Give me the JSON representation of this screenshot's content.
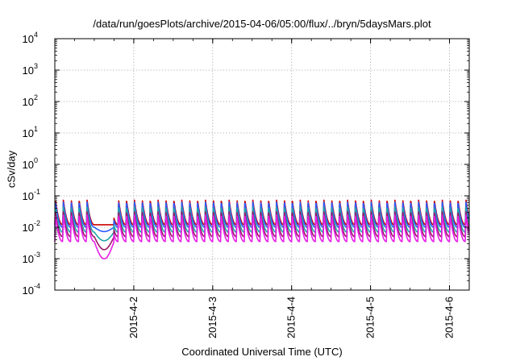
{
  "chart_data": {
    "type": "line",
    "title": "/data/run/goesPlots/archive/2015-04-06/05:00/flux/../bryn/5daysMars.plot",
    "xlabel": "Coordinated Universal Time (UTC)",
    "ylabel": "cSv/day",
    "yscale": "log",
    "ylim": [
      0.0001,
      10000
    ],
    "xlim": [
      "2015-04-01 00:00",
      "2015-04-06 06:00"
    ],
    "x_ticks": [
      "2015-4-2",
      "2015-4-3",
      "2015-4-4",
      "2015-4-5",
      "2015-4-6"
    ],
    "y_ticks": [
      {
        "base": "10",
        "exp": "4"
      },
      {
        "base": "10",
        "exp": "3"
      },
      {
        "base": "10",
        "exp": "2"
      },
      {
        "base": "10",
        "exp": "1"
      },
      {
        "base": "10",
        "exp": "0"
      },
      {
        "base": "10",
        "exp": "-1"
      },
      {
        "base": "10",
        "exp": "-2"
      },
      {
        "base": "10",
        "exp": "-3"
      },
      {
        "base": "10",
        "exp": "-4"
      }
    ],
    "grid": true,
    "pattern": {
      "cycle_hours": 2.4,
      "cycles": 52
    },
    "series": [
      {
        "color": "#cc0000",
        "peak": 0.075,
        "trough": 0.012
      },
      {
        "color": "#2c5cff",
        "peak": 0.065,
        "trough": 0.01
      },
      {
        "color": "#20a8a8",
        "peak": 0.045,
        "trough": 0.007
      },
      {
        "color": "#9a1a6a",
        "peak": 0.032,
        "trough": 0.005
      },
      {
        "color": "#e81ee8",
        "peak": 0.025,
        "trough": 0.0035
      }
    ],
    "event": {
      "start": "2015-04-01 12:00",
      "end": "2015-04-01 18:00",
      "min_value": 0.001
    }
  }
}
